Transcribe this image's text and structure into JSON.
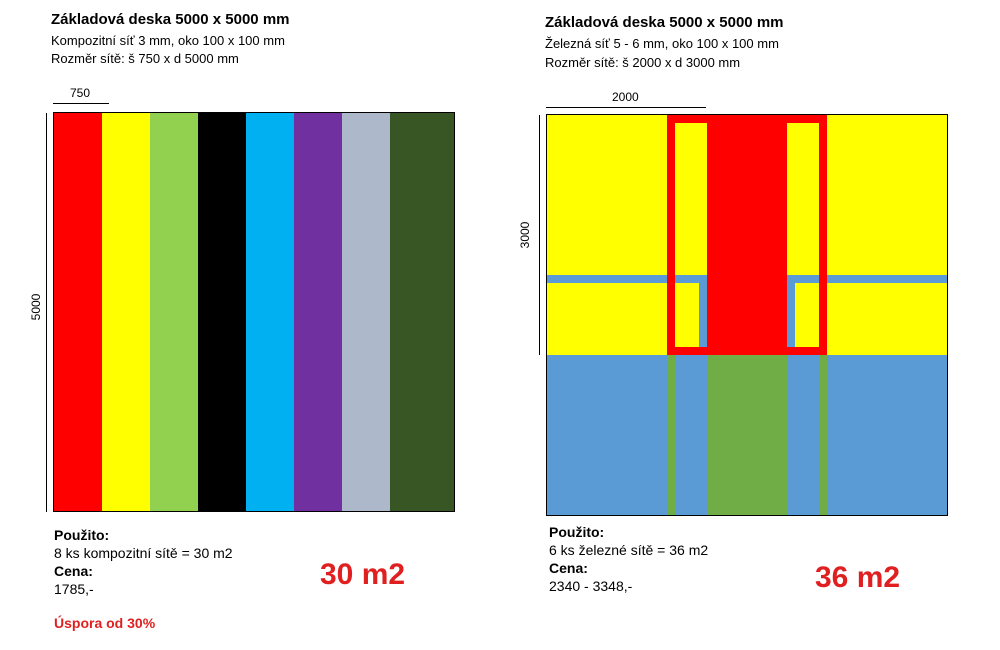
{
  "left": {
    "title": "Základová deska 5000 x 5000 mm",
    "line1": "Kompozitní síť 3 mm, oko 100 x 100 mm",
    "line2": "Rozměr sítě: š 750 x d 5000 mm",
    "dim_width": "750",
    "dim_height": "5000",
    "stripes": [
      "#ff0000",
      "#ffff00",
      "#92d050",
      "#000000",
      "#00b0f0",
      "#7030a0",
      "#adb9ca",
      "#375623"
    ],
    "used_label": "Použito:",
    "used_value": "8 ks kompozitní sítě = 30 m2",
    "price_label": "Cena:",
    "price_value": "1785,-",
    "big_total": "30 m2",
    "saving": "Úspora od 30%"
  },
  "right": {
    "title": "Základová deska 5000 x 5000 mm",
    "line1": "Železná síť 5 - 6 mm, oko 100 x 100 mm",
    "line2": "Rozměr sítě: š 2000 x d 3000 mm",
    "dim_width": "2000",
    "dim_height": "3000",
    "colors": {
      "yellow": "#ffff00",
      "blue": "#5b9bd5",
      "red": "#ff0000",
      "green": "#70ad47"
    },
    "used_label": "Použito:",
    "used_value": "6 ks železné sítě = 36 m2",
    "price_label": "Cena:",
    "price_value": "2340 - 3348,-",
    "big_total": "36 m2"
  },
  "accent": "#e02020"
}
